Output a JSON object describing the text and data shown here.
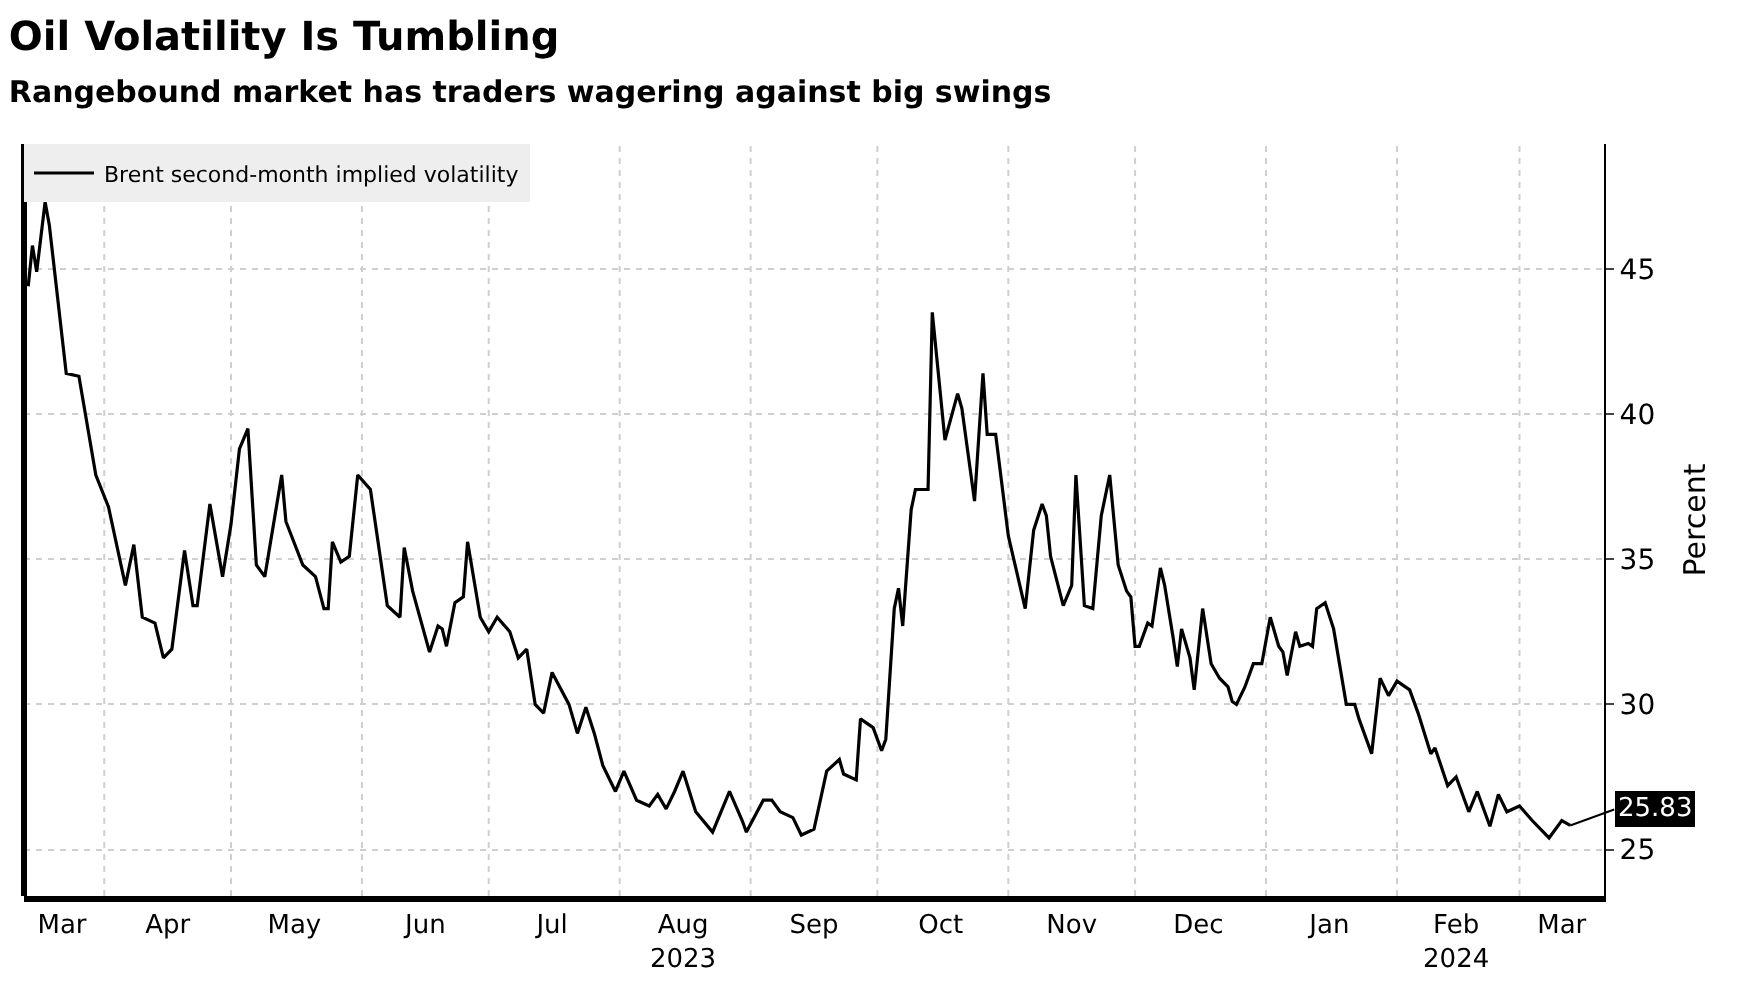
{
  "chart_data": {
    "type": "line",
    "title": "Oil Volatility Is Tumbling",
    "subtitle": "Rangebound market has traders wagering against big swings",
    "ylabel": "Percent",
    "x": [
      "2023-03-14",
      "2023-03-15",
      "2023-03-16",
      "2023-03-18",
      "2023-03-19",
      "2023-03-23",
      "2023-03-26",
      "2023-03-30",
      "2023-04-02",
      "2023-04-06",
      "2023-04-08",
      "2023-04-10",
      "2023-04-13",
      "2023-04-15",
      "2023-04-17",
      "2023-04-20",
      "2023-04-22",
      "2023-04-23",
      "2023-04-26",
      "2023-04-29",
      "2023-05-01",
      "2023-05-03",
      "2023-05-05",
      "2023-05-07",
      "2023-05-09",
      "2023-05-13",
      "2023-05-14",
      "2023-05-18",
      "2023-05-21",
      "2023-05-23",
      "2023-05-24",
      "2023-05-25",
      "2023-05-27",
      "2023-05-29",
      "2023-05-31",
      "2023-06-03",
      "2023-06-05",
      "2023-06-07",
      "2023-06-10",
      "2023-06-11",
      "2023-06-13",
      "2023-06-17",
      "2023-06-19",
      "2023-06-20",
      "2023-06-21",
      "2023-06-23",
      "2023-06-25",
      "2023-06-26",
      "2023-06-29",
      "2023-07-01",
      "2023-07-03",
      "2023-07-06",
      "2023-07-08",
      "2023-07-10",
      "2023-07-12",
      "2023-07-14",
      "2023-07-16",
      "2023-07-20",
      "2023-07-22",
      "2023-07-24",
      "2023-07-26",
      "2023-07-28",
      "2023-07-31",
      "2023-08-02",
      "2023-08-05",
      "2023-08-08",
      "2023-08-10",
      "2023-08-12",
      "2023-08-14",
      "2023-08-16",
      "2023-08-19",
      "2023-08-23",
      "2023-08-27",
      "2023-08-30",
      "2023-08-31",
      "2023-09-04",
      "2023-09-06",
      "2023-09-08",
      "2023-09-11",
      "2023-09-13",
      "2023-09-16",
      "2023-09-19",
      "2023-09-22",
      "2023-09-23",
      "2023-09-26",
      "2023-09-27",
      "2023-09-30",
      "2023-10-02",
      "2023-10-03",
      "2023-10-05",
      "2023-10-06",
      "2023-10-07",
      "2023-10-09",
      "2023-10-10",
      "2023-10-13",
      "2023-10-14",
      "2023-10-17",
      "2023-10-20",
      "2023-10-21",
      "2023-10-24",
      "2023-10-26",
      "2023-10-27",
      "2023-10-29",
      "2023-11-01",
      "2023-11-05",
      "2023-11-07",
      "2023-11-09",
      "2023-11-10",
      "2023-11-11",
      "2023-11-14",
      "2023-11-16",
      "2023-11-17",
      "2023-11-19",
      "2023-11-21",
      "2023-11-23",
      "2023-11-25",
      "2023-11-27",
      "2023-11-29",
      "2023-11-30",
      "2023-12-01",
      "2023-12-02",
      "2023-12-04",
      "2023-12-05",
      "2023-12-07",
      "2023-12-08",
      "2023-12-10",
      "2023-12-11",
      "2023-12-12",
      "2023-12-14",
      "2023-12-15",
      "2023-12-17",
      "2023-12-19",
      "2023-12-21",
      "2023-12-23",
      "2023-12-24",
      "2023-12-25",
      "2023-12-27",
      "2023-12-29",
      "2023-12-31",
      "2024-01-02",
      "2024-01-04",
      "2024-01-05",
      "2024-01-06",
      "2024-01-08",
      "2024-01-09",
      "2024-01-11",
      "2024-01-12",
      "2024-01-13",
      "2024-01-15",
      "2024-01-17",
      "2024-01-20",
      "2024-01-22",
      "2024-01-23",
      "2024-01-26",
      "2024-01-28",
      "2024-01-30",
      "2024-02-01",
      "2024-02-04",
      "2024-02-06",
      "2024-02-09",
      "2024-02-10",
      "2024-02-13",
      "2024-02-15",
      "2024-02-18",
      "2024-02-20",
      "2024-02-23",
      "2024-02-25",
      "2024-02-27",
      "2024-03-01",
      "2024-03-04",
      "2024-03-08",
      "2024-03-11",
      "2024-03-13"
    ],
    "series": [
      {
        "name": "Brent second-month implied volatility",
        "color": "#000000",
        "values": [
          44.4,
          45.8,
          44.9,
          47.3,
          46.5,
          41.4,
          41.3,
          37.9,
          36.8,
          34.1,
          35.5,
          33.0,
          32.8,
          31.6,
          31.9,
          35.3,
          33.4,
          33.4,
          36.9,
          34.4,
          36.2,
          38.8,
          39.5,
          34.8,
          34.4,
          37.9,
          36.3,
          34.8,
          34.4,
          33.3,
          33.3,
          35.6,
          34.9,
          35.1,
          37.9,
          37.4,
          35.4,
          33.4,
          33.0,
          35.4,
          33.9,
          31.8,
          32.7,
          32.6,
          32.0,
          33.5,
          33.7,
          35.6,
          33.0,
          32.5,
          33.0,
          32.5,
          31.6,
          31.9,
          30.0,
          29.7,
          31.1,
          30.0,
          29.0,
          29.9,
          29.0,
          27.9,
          27.0,
          27.7,
          26.7,
          26.5,
          26.9,
          26.4,
          27.0,
          27.7,
          26.3,
          25.6,
          27.0,
          26.0,
          25.6,
          26.7,
          26.7,
          26.3,
          26.1,
          25.5,
          25.7,
          27.7,
          28.1,
          27.6,
          27.4,
          29.5,
          29.2,
          28.4,
          28.8,
          33.3,
          34.0,
          32.7,
          36.7,
          37.4,
          37.4,
          43.5,
          39.1,
          40.7,
          40.2,
          37.0,
          41.4,
          39.3,
          39.3,
          35.8,
          33.3,
          36.0,
          36.9,
          36.5,
          35.1,
          33.4,
          34.1,
          37.9,
          33.4,
          33.3,
          36.5,
          37.9,
          34.8,
          33.9,
          33.7,
          32.0,
          32.0,
          32.8,
          32.7,
          34.7,
          34.1,
          32.3,
          31.3,
          32.6,
          31.6,
          30.5,
          33.3,
          31.4,
          30.9,
          30.6,
          30.1,
          30.0,
          30.6,
          31.4,
          31.4,
          33.0,
          32.0,
          31.8,
          31.0,
          32.5,
          32.0,
          32.1,
          32.0,
          33.3,
          33.5,
          32.6,
          30.0,
          30.0,
          29.5,
          28.3,
          30.9,
          30.3,
          30.8,
          30.5,
          29.7,
          28.3,
          28.5,
          27.2,
          27.5,
          26.3,
          27.0,
          25.8,
          26.9,
          26.3,
          26.5,
          26.0,
          25.4,
          26.0,
          25.83
        ]
      }
    ],
    "xlim": [
      "2023-03-13",
      "2024-03-21"
    ],
    "xticks": [
      {
        "value": "2023-03-22",
        "label": "Mar"
      },
      {
        "value": "2023-04-01",
        "label": null
      },
      {
        "value": "2023-04-16",
        "label": "Apr"
      },
      {
        "value": "2023-05-01",
        "label": null
      },
      {
        "value": "2023-05-16",
        "label": "May"
      },
      {
        "value": "2023-06-01",
        "label": null
      },
      {
        "value": "2023-06-16",
        "label": "Jun"
      },
      {
        "value": "2023-07-01",
        "label": null
      },
      {
        "value": "2023-07-16",
        "label": "Jul"
      },
      {
        "value": "2023-08-01",
        "label": null
      },
      {
        "value": "2023-08-16",
        "label": "Aug\n2023"
      },
      {
        "value": "2023-09-01",
        "label": null
      },
      {
        "value": "2023-09-16",
        "label": "Sep"
      },
      {
        "value": "2023-10-01",
        "label": null
      },
      {
        "value": "2023-10-16",
        "label": "Oct"
      },
      {
        "value": "2023-11-01",
        "label": null
      },
      {
        "value": "2023-11-16",
        "label": "Nov"
      },
      {
        "value": "2023-12-01",
        "label": null
      },
      {
        "value": "2023-12-16",
        "label": "Dec"
      },
      {
        "value": "2024-01-01",
        "label": null
      },
      {
        "value": "2024-01-16",
        "label": "Jan"
      },
      {
        "value": "2024-02-01",
        "label": null
      },
      {
        "value": "2024-02-15",
        "label": "Feb\n2024"
      },
      {
        "value": "2024-03-01",
        "label": null
      },
      {
        "value": "2024-03-11",
        "label": "Mar"
      }
    ],
    "ylim": [
      23.4,
      49.3
    ],
    "yticks": [
      25,
      30,
      35,
      40,
      45
    ],
    "annotations": [
      {
        "text": "25.83",
        "x": "2024-03-13",
        "y": 25.83
      }
    ],
    "grid": true,
    "legend": "top left",
    "marker": "none",
    "line_style": "solid"
  }
}
